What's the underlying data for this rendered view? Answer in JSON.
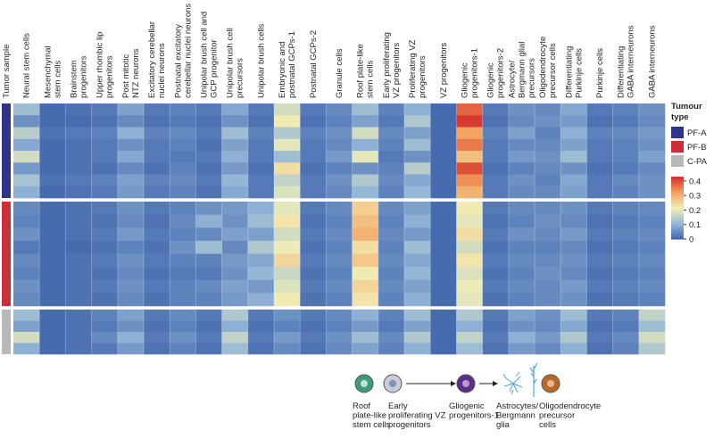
{
  "chart_data": {
    "type": "heatmap",
    "row_axis_label": "Tumor sample",
    "categories": [
      "Neural stem cells",
      "Mesenchymal\nstem cells",
      "Brainstem\nprogenitors",
      "Upper rhombic lip\nprogenitors",
      "Post mitotic\nNTZ neurons",
      "Excitatory cerebellar\nnuclei neurons",
      "Postnatal excitatory\ncerebellar nuclei neurons",
      "Unipolar brush cell and\nGCP progenitor",
      "Unipolar brush cell\nprecursors",
      "Unipolar brush cells",
      "Embryonic and\npostnatal GCPs-1",
      "Postnatal GCPs-2",
      "Granule cells",
      "Roof plate-like\nstem cells",
      "Early proliferating\nVZ progenitors",
      "Proliferating VZ\nprogenitors",
      "VZ progenitors",
      "Gliogenic\nprogenitors-1",
      "Gliogenic\nprogenitors-2",
      "Astrocyte/\nBergmann glial\nprecursors",
      "Oligodendrocyte\nprecursor cells",
      "Differentiating\nPurkinje cells",
      "Purkinje cells",
      "Differentiating\nGABA interneurons",
      "GABA interneurons"
    ],
    "legend_title": "Tumour type",
    "series": [
      {
        "name": "PF-A",
        "color": "#2e3488",
        "values": [
          [
            0.12,
            0.01,
            0.02,
            0.03,
            0.08,
            0.03,
            0.04,
            0.03,
            0.09,
            0.03,
            0.18,
            0.03,
            0.05,
            0.12,
            0.04,
            0.1,
            0.01,
            0.38,
            0.03,
            0.06,
            0.05,
            0.09,
            0.03,
            0.04,
            0.06
          ],
          [
            0.06,
            0.01,
            0.01,
            0.02,
            0.05,
            0.02,
            0.03,
            0.02,
            0.06,
            0.02,
            0.22,
            0.02,
            0.04,
            0.08,
            0.03,
            0.14,
            0.01,
            0.42,
            0.02,
            0.05,
            0.06,
            0.07,
            0.02,
            0.03,
            0.05
          ],
          [
            0.15,
            0.02,
            0.03,
            0.04,
            0.1,
            0.04,
            0.05,
            0.03,
            0.12,
            0.04,
            0.14,
            0.04,
            0.06,
            0.18,
            0.05,
            0.08,
            0.01,
            0.32,
            0.04,
            0.08,
            0.04,
            0.1,
            0.04,
            0.05,
            0.07
          ],
          [
            0.09,
            0.01,
            0.02,
            0.03,
            0.06,
            0.03,
            0.04,
            0.02,
            0.08,
            0.03,
            0.2,
            0.03,
            0.05,
            0.1,
            0.04,
            0.12,
            0.01,
            0.36,
            0.03,
            0.05,
            0.05,
            0.08,
            0.03,
            0.04,
            0.06
          ],
          [
            0.18,
            0.01,
            0.02,
            0.03,
            0.09,
            0.03,
            0.03,
            0.03,
            0.1,
            0.03,
            0.12,
            0.03,
            0.07,
            0.2,
            0.03,
            0.06,
            0.01,
            0.28,
            0.03,
            0.07,
            0.06,
            0.12,
            0.03,
            0.04,
            0.08
          ],
          [
            0.07,
            0.01,
            0.02,
            0.02,
            0.05,
            0.02,
            0.04,
            0.02,
            0.07,
            0.02,
            0.24,
            0.02,
            0.04,
            0.06,
            0.04,
            0.15,
            0.01,
            0.4,
            0.02,
            0.04,
            0.05,
            0.06,
            0.02,
            0.03,
            0.05
          ],
          [
            0.13,
            0.02,
            0.03,
            0.04,
            0.08,
            0.04,
            0.05,
            0.03,
            0.11,
            0.03,
            0.16,
            0.03,
            0.06,
            0.14,
            0.05,
            0.09,
            0.01,
            0.34,
            0.03,
            0.06,
            0.04,
            0.09,
            0.03,
            0.05,
            0.06
          ],
          [
            0.1,
            0.01,
            0.02,
            0.03,
            0.07,
            0.03,
            0.04,
            0.02,
            0.09,
            0.03,
            0.19,
            0.03,
            0.05,
            0.11,
            0.04,
            0.11,
            0.01,
            0.3,
            0.03,
            0.05,
            0.05,
            0.08,
            0.03,
            0.04,
            0.06
          ]
        ]
      },
      {
        "name": "PF-B",
        "color": "#cc2f3a",
        "values": [
          [
            0.05,
            0.01,
            0.02,
            0.03,
            0.06,
            0.03,
            0.04,
            0.06,
            0.07,
            0.1,
            0.2,
            0.03,
            0.05,
            0.26,
            0.05,
            0.08,
            0.01,
            0.22,
            0.03,
            0.05,
            0.05,
            0.06,
            0.03,
            0.04,
            0.05
          ],
          [
            0.04,
            0.01,
            0.02,
            0.02,
            0.05,
            0.02,
            0.05,
            0.1,
            0.06,
            0.12,
            0.23,
            0.02,
            0.04,
            0.28,
            0.04,
            0.1,
            0.01,
            0.2,
            0.02,
            0.04,
            0.06,
            0.05,
            0.02,
            0.03,
            0.04
          ],
          [
            0.06,
            0.01,
            0.02,
            0.03,
            0.07,
            0.03,
            0.04,
            0.05,
            0.08,
            0.08,
            0.18,
            0.03,
            0.05,
            0.3,
            0.05,
            0.07,
            0.01,
            0.24,
            0.03,
            0.06,
            0.05,
            0.07,
            0.03,
            0.04,
            0.05
          ],
          [
            0.03,
            0.01,
            0.01,
            0.02,
            0.04,
            0.02,
            0.06,
            0.12,
            0.05,
            0.14,
            0.21,
            0.02,
            0.04,
            0.24,
            0.04,
            0.12,
            0.01,
            0.18,
            0.02,
            0.04,
            0.04,
            0.05,
            0.02,
            0.03,
            0.04
          ],
          [
            0.05,
            0.01,
            0.02,
            0.03,
            0.06,
            0.03,
            0.04,
            0.04,
            0.07,
            0.09,
            0.25,
            0.03,
            0.05,
            0.27,
            0.05,
            0.09,
            0.01,
            0.23,
            0.03,
            0.05,
            0.05,
            0.06,
            0.03,
            0.04,
            0.05
          ],
          [
            0.04,
            0.01,
            0.02,
            0.02,
            0.05,
            0.02,
            0.03,
            0.03,
            0.06,
            0.11,
            0.17,
            0.02,
            0.04,
            0.22,
            0.04,
            0.11,
            0.01,
            0.19,
            0.02,
            0.04,
            0.06,
            0.05,
            0.02,
            0.03,
            0.04
          ],
          [
            0.06,
            0.01,
            0.02,
            0.03,
            0.06,
            0.03,
            0.04,
            0.05,
            0.08,
            0.07,
            0.19,
            0.03,
            0.05,
            0.25,
            0.05,
            0.08,
            0.01,
            0.21,
            0.03,
            0.05,
            0.05,
            0.07,
            0.03,
            0.04,
            0.05
          ],
          [
            0.05,
            0.01,
            0.02,
            0.02,
            0.05,
            0.02,
            0.04,
            0.04,
            0.07,
            0.1,
            0.22,
            0.02,
            0.04,
            0.23,
            0.04,
            0.1,
            0.01,
            0.2,
            0.02,
            0.04,
            0.05,
            0.06,
            0.02,
            0.03,
            0.04
          ]
        ]
      },
      {
        "name": "C-PA",
        "color": "#b8b8b8",
        "values": [
          [
            0.12,
            0.01,
            0.02,
            0.04,
            0.08,
            0.03,
            0.05,
            0.03,
            0.14,
            0.03,
            0.06,
            0.03,
            0.05,
            0.1,
            0.04,
            0.12,
            0.01,
            0.14,
            0.03,
            0.08,
            0.06,
            0.12,
            0.03,
            0.04,
            0.16
          ],
          [
            0.08,
            0.01,
            0.02,
            0.03,
            0.06,
            0.02,
            0.04,
            0.02,
            0.1,
            0.02,
            0.04,
            0.02,
            0.04,
            0.07,
            0.03,
            0.08,
            0.01,
            0.1,
            0.02,
            0.06,
            0.05,
            0.09,
            0.02,
            0.03,
            0.12
          ],
          [
            0.18,
            0.01,
            0.02,
            0.05,
            0.1,
            0.03,
            0.06,
            0.03,
            0.16,
            0.03,
            0.07,
            0.03,
            0.06,
            0.12,
            0.05,
            0.14,
            0.01,
            0.16,
            0.03,
            0.1,
            0.07,
            0.14,
            0.03,
            0.05,
            0.18
          ],
          [
            0.1,
            0.01,
            0.02,
            0.03,
            0.07,
            0.02,
            0.04,
            0.02,
            0.12,
            0.02,
            0.05,
            0.02,
            0.05,
            0.08,
            0.04,
            0.1,
            0.01,
            0.12,
            0.02,
            0.07,
            0.05,
            0.1,
            0.02,
            0.04,
            0.14
          ]
        ]
      }
    ],
    "colorbar_lim": [
      0,
      0.43
    ],
    "colorbar_ticks": [
      0,
      0.1,
      0.2,
      0.3,
      0.4
    ],
    "colormap": [
      "#3f63ab",
      "#93b6d7",
      "#f1efb6",
      "#f5a25e",
      "#d42f2a"
    ]
  },
  "diagram": {
    "labels": [
      "Roof\nplate-like\nstem cells",
      "Early\nproliferating VZ\nprogenitors",
      "Gliogenic\nprogenitors-1",
      "Astrocytes/\nBergmann\nglia",
      "Oligodendrocyte\nprecursor\ncells"
    ]
  }
}
